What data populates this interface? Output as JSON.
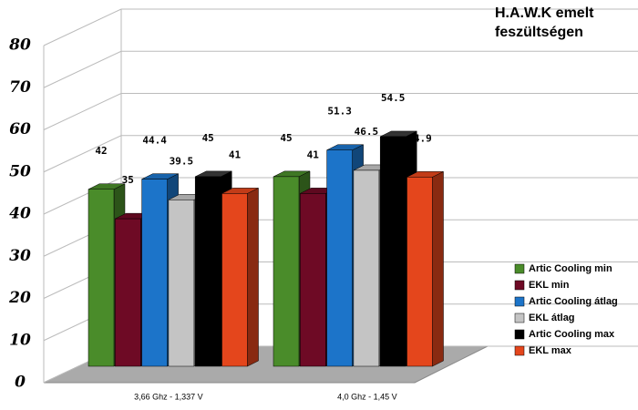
{
  "chart_data": {
    "type": "bar3d",
    "title": "H.A.W.K emelt feszültségen",
    "categories": [
      "3,66 Ghz - 1,337 V",
      "4,0 Ghz - 1,45 V"
    ],
    "series": [
      {
        "name": "Artic Cooling min",
        "color": "#4a8c2a",
        "values": [
          42,
          45
        ]
      },
      {
        "name": "EKL min",
        "color": "#6e0a25",
        "values": [
          35,
          41
        ]
      },
      {
        "name": "Artic Cooling átlag",
        "color": "#1c74c9",
        "values": [
          44.4,
          51.3
        ]
      },
      {
        "name": "EKL átlag",
        "color": "#c4c4c4",
        "values": [
          39.5,
          46.5
        ]
      },
      {
        "name": "Artic Cooling max",
        "color": "#000000",
        "values": [
          45,
          54.5
        ]
      },
      {
        "name": "EKL max",
        "color": "#e4461c",
        "values": [
          41,
          44.9
        ]
      }
    ],
    "ylim": [
      0,
      80
    ],
    "yticks": [
      0,
      10,
      20,
      30,
      40,
      50,
      60,
      70,
      80
    ],
    "grid": true,
    "legend": "right"
  }
}
